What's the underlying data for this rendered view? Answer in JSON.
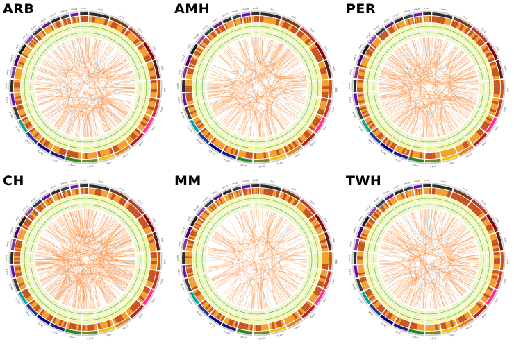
{
  "figure": {
    "panels": [
      {
        "label": "ARB",
        "link_density": 0.55
      },
      {
        "label": "AMH",
        "link_density": 0.45
      },
      {
        "label": "PER",
        "link_density": 0.6
      },
      {
        "label": "CH",
        "link_density": 0.75
      },
      {
        "label": "MM",
        "link_density": 0.3
      },
      {
        "label": "TWH",
        "link_density": 0.5
      }
    ],
    "chromosomes": [
      "chr1",
      "chr2",
      "chr3",
      "chr4",
      "chr5",
      "chr6",
      "chr7",
      "chr8",
      "chr9",
      "chr10",
      "chr11",
      "chr12",
      "chr13",
      "chr14",
      "chr15",
      "chr16",
      "chr17",
      "chr18",
      "chr19",
      "chr20",
      "chr21",
      "chr22",
      "chr23",
      "chr24",
      "chr25",
      "chr26",
      "chr27",
      "chr28",
      "chr29",
      "chrX"
    ],
    "colors": {
      "link": "#ff8c3a",
      "link_secondary": "#9fd3e0",
      "ring_heat_1": "#c8531e",
      "ring_heat_2": "#f0a030",
      "ring_track": "#f2f6b0",
      "ring_line": "#4caf50",
      "ideogram_dark": "#222222"
    },
    "ideogram_colors": [
      "#2b2b2b",
      "#7a3b1a",
      "#c0392b",
      "#8b0000",
      "#5a1a1a",
      "#d35400",
      "#c0392b",
      "#ff2f92",
      "#b22222",
      "#e67e22",
      "#f1c40f",
      "#6b8e23",
      "#228b22",
      "#1a1a8c",
      "#00008b",
      "#1f3a93",
      "#00a6a6",
      "#3d3d3d",
      "#6a0dad",
      "#2b2b2b",
      "#7d3c98",
      "#4b0082",
      "#1a1a1a",
      "#8e44ad",
      "#2c3e50",
      "#5d1a8c",
      "#2b2b2b",
      "#3d3d3d",
      "#6a0dad",
      "#2b2b2b"
    ]
  }
}
